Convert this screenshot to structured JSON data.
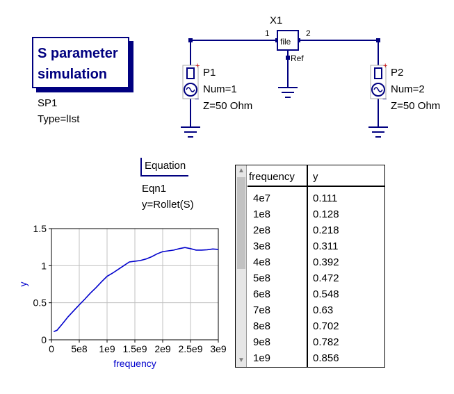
{
  "sim_block": {
    "line1": "S parameter",
    "line2": "simulation",
    "name": "SP1",
    "type": "Type=lIst"
  },
  "components": {
    "x1": {
      "name": "X1",
      "body_label": "file",
      "pin1": "1",
      "pin2": "2",
      "ref_label": "Ref"
    },
    "p1": {
      "name": "P1",
      "num": "Num=1",
      "z": "Z=50 Ohm",
      "plus": "+",
      "minus": "−"
    },
    "p2": {
      "name": "P2",
      "num": "Num=2",
      "z": "Z=50 Ohm",
      "plus": "+",
      "minus": "−"
    }
  },
  "equation": {
    "tag": "Equation",
    "name": "Eqn1",
    "expr": "y=Rollet(S)"
  },
  "table": {
    "headers": [
      "frequency",
      "y"
    ],
    "rows": [
      [
        "4e7",
        "0.111"
      ],
      [
        "1e8",
        "0.128"
      ],
      [
        "2e8",
        "0.218"
      ],
      [
        "3e8",
        "0.311"
      ],
      [
        "4e8",
        "0.392"
      ],
      [
        "5e8",
        "0.472"
      ],
      [
        "6e8",
        "0.548"
      ],
      [
        "7e8",
        "0.63"
      ],
      [
        "8e8",
        "0.702"
      ],
      [
        "9e8",
        "0.782"
      ],
      [
        "1e9",
        "0.856"
      ]
    ],
    "scroll_up_icon": "triangle-up-icon",
    "scroll_down_icon": "triangle-down-icon"
  },
  "colors": {
    "wire": "#000080",
    "curve": "#0000cc",
    "axis_label": "#0000cc",
    "grid": "#c0c0c0",
    "red_marker": "#cc0000"
  },
  "chart_data": {
    "type": "line",
    "xlabel": "frequency",
    "ylabel": "y",
    "xlim": [
      0,
      3000000000
    ],
    "ylim": [
      0,
      1.5
    ],
    "x_ticks": [
      0,
      500000000,
      1000000000,
      1500000000,
      2000000000,
      2500000000,
      3000000000
    ],
    "x_tick_labels": [
      "0",
      "5e8",
      "1e9",
      "1.5e9",
      "2e9",
      "2.5e9",
      "3e9"
    ],
    "y_ticks": [
      0,
      0.5,
      1,
      1.5
    ],
    "y_tick_labels": [
      "0",
      "0.5",
      "1",
      "1.5"
    ],
    "grid": true,
    "series": [
      {
        "x": [
          40000000,
          100000000,
          200000000,
          300000000,
          400000000,
          500000000,
          600000000,
          700000000,
          800000000,
          900000000,
          1000000000,
          1100000000,
          1200000000,
          1300000000,
          1400000000,
          1500000000,
          1600000000,
          1700000000,
          1800000000,
          1900000000,
          2000000000,
          2100000000,
          2200000000,
          2300000000,
          2400000000,
          2500000000,
          2600000000,
          2700000000,
          2800000000,
          2900000000,
          3000000000
        ],
        "y": [
          0.111,
          0.128,
          0.218,
          0.311,
          0.392,
          0.472,
          0.548,
          0.63,
          0.702,
          0.782,
          0.856,
          0.9,
          0.95,
          1.0,
          1.05,
          1.06,
          1.07,
          1.09,
          1.12,
          1.16,
          1.19,
          1.2,
          1.21,
          1.23,
          1.245,
          1.23,
          1.21,
          1.21,
          1.215,
          1.225,
          1.22
        ]
      }
    ]
  }
}
